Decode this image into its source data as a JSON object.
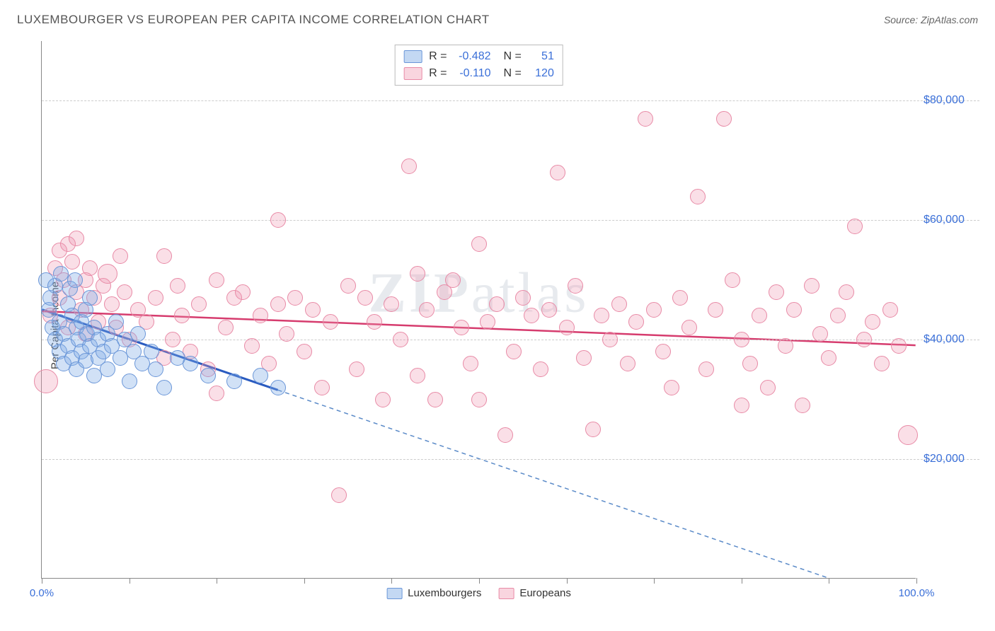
{
  "header": {
    "title": "LUXEMBOURGER VS EUROPEAN PER CAPITA INCOME CORRELATION CHART",
    "source": "Source: ZipAtlas.com"
  },
  "chart": {
    "type": "scatter",
    "ylabel": "Per Capita Income",
    "watermark": "ZIPatlas",
    "xlim": [
      0,
      100
    ],
    "ylim": [
      0,
      90000
    ],
    "xtick_step": 10,
    "xtick_labels": {
      "0": "0.0%",
      "100": "100.0%"
    },
    "yticks": [
      20000,
      40000,
      60000,
      80000
    ],
    "ytick_labels": [
      "$20,000",
      "$40,000",
      "$60,000",
      "$80,000"
    ],
    "grid_color": "#cccccc",
    "axis_color": "#888888",
    "background_color": "#ffffff",
    "dot_radius_default": 11,
    "colors": {
      "blue_fill": "rgba(122,168,228,0.35)",
      "blue_stroke": "#6a96d8",
      "pink_fill": "rgba(240,150,175,0.30)",
      "pink_stroke": "#e88aa6",
      "tick_text": "#3a6fd8",
      "trend_blue": "#2a5bc0",
      "trend_pink": "#d63c6e"
    },
    "legend_top": {
      "rows": [
        {
          "swatch": "blue",
          "r_label": "R =",
          "r_val": "-0.482",
          "n_label": "N =",
          "n_val": "51"
        },
        {
          "swatch": "pink",
          "r_label": "R =",
          "r_val": "-0.110",
          "n_label": "N =",
          "n_val": "120"
        }
      ]
    },
    "legend_bottom": [
      {
        "swatch": "blue",
        "label": "Luxembourgers"
      },
      {
        "swatch": "pink",
        "label": "Europeans"
      }
    ],
    "trend_lines": {
      "blue": {
        "x1": 0,
        "y1": 45000,
        "x2": 27,
        "y2": 31500,
        "color": "#2a5bc0",
        "width": 3,
        "dash": "none"
      },
      "blue_ext": {
        "x1": 27,
        "y1": 31500,
        "x2": 100,
        "y2": -5000,
        "color": "#5a8ac8",
        "width": 1.5,
        "dash": "6,5"
      },
      "pink": {
        "x1": 0,
        "y1": 44700,
        "x2": 100,
        "y2": 39000,
        "color": "#d63c6e",
        "width": 2.5,
        "dash": "none"
      }
    },
    "series": {
      "luxembourgers": {
        "color": "blue",
        "points": [
          {
            "x": 0.5,
            "y": 50000
          },
          {
            "x": 0.8,
            "y": 45000
          },
          {
            "x": 1.0,
            "y": 47000
          },
          {
            "x": 1.2,
            "y": 42000
          },
          {
            "x": 1.5,
            "y": 49000
          },
          {
            "x": 1.5,
            "y": 40000
          },
          {
            "x": 2.0,
            "y": 43000
          },
          {
            "x": 2.0,
            "y": 38000
          },
          {
            "x": 2.2,
            "y": 51000
          },
          {
            "x": 2.5,
            "y": 41000
          },
          {
            "x": 2.5,
            "y": 36000
          },
          {
            "x": 3.0,
            "y": 46000
          },
          {
            "x": 3.0,
            "y": 39000
          },
          {
            "x": 3.2,
            "y": 48500
          },
          {
            "x": 3.5,
            "y": 44000
          },
          {
            "x": 3.5,
            "y": 37000
          },
          {
            "x": 3.8,
            "y": 50000
          },
          {
            "x": 4.0,
            "y": 42000
          },
          {
            "x": 4.0,
            "y": 35000
          },
          {
            "x": 4.2,
            "y": 40000
          },
          {
            "x": 4.5,
            "y": 43000
          },
          {
            "x": 4.5,
            "y": 38000
          },
          {
            "x": 5.0,
            "y": 45000
          },
          {
            "x": 5.0,
            "y": 36500
          },
          {
            "x": 5.2,
            "y": 41000
          },
          {
            "x": 5.5,
            "y": 47000
          },
          {
            "x": 5.5,
            "y": 39000
          },
          {
            "x": 6.0,
            "y": 34000
          },
          {
            "x": 6.0,
            "y": 42000
          },
          {
            "x": 6.5,
            "y": 40000
          },
          {
            "x": 6.5,
            "y": 37000
          },
          {
            "x": 7.0,
            "y": 38000
          },
          {
            "x": 7.5,
            "y": 41000
          },
          {
            "x": 7.5,
            "y": 35000
          },
          {
            "x": 8.0,
            "y": 39000
          },
          {
            "x": 8.5,
            "y": 43000
          },
          {
            "x": 9.0,
            "y": 37000
          },
          {
            "x": 9.5,
            "y": 40000
          },
          {
            "x": 10.0,
            "y": 33000
          },
          {
            "x": 10.5,
            "y": 38000
          },
          {
            "x": 11.0,
            "y": 41000
          },
          {
            "x": 11.5,
            "y": 36000
          },
          {
            "x": 12.5,
            "y": 38000
          },
          {
            "x": 13.0,
            "y": 35000
          },
          {
            "x": 14.0,
            "y": 32000
          },
          {
            "x": 15.5,
            "y": 37000
          },
          {
            "x": 17.0,
            "y": 36000
          },
          {
            "x": 19.0,
            "y": 34000
          },
          {
            "x": 22.0,
            "y": 33000
          },
          {
            "x": 25.0,
            "y": 34000
          },
          {
            "x": 27.0,
            "y": 32000
          }
        ]
      },
      "europeans": {
        "color": "pink",
        "points": [
          {
            "x": 0.5,
            "y": 33000,
            "r": 17
          },
          {
            "x": 1.0,
            "y": 44000
          },
          {
            "x": 1.5,
            "y": 52000
          },
          {
            "x": 2.0,
            "y": 47000
          },
          {
            "x": 2.0,
            "y": 55000
          },
          {
            "x": 2.5,
            "y": 50000
          },
          {
            "x": 3.0,
            "y": 42000
          },
          {
            "x": 3.0,
            "y": 56000
          },
          {
            "x": 3.5,
            "y": 53000
          },
          {
            "x": 4.0,
            "y": 48000
          },
          {
            "x": 4.0,
            "y": 57000
          },
          {
            "x": 4.5,
            "y": 45000
          },
          {
            "x": 5.0,
            "y": 50000
          },
          {
            "x": 5.0,
            "y": 41000
          },
          {
            "x": 5.5,
            "y": 52000
          },
          {
            "x": 6.0,
            "y": 47000
          },
          {
            "x": 6.5,
            "y": 43000
          },
          {
            "x": 7.0,
            "y": 49000
          },
          {
            "x": 7.5,
            "y": 51000,
            "r": 14
          },
          {
            "x": 8.0,
            "y": 46000
          },
          {
            "x": 8.5,
            "y": 42000
          },
          {
            "x": 9.0,
            "y": 54000
          },
          {
            "x": 9.5,
            "y": 48000
          },
          {
            "x": 10.0,
            "y": 40000
          },
          {
            "x": 11.0,
            "y": 45000
          },
          {
            "x": 12.0,
            "y": 43000
          },
          {
            "x": 13.0,
            "y": 47000
          },
          {
            "x": 14.0,
            "y": 54000
          },
          {
            "x": 14.0,
            "y": 37000
          },
          {
            "x": 15.0,
            "y": 40000
          },
          {
            "x": 15.5,
            "y": 49000
          },
          {
            "x": 16.0,
            "y": 44000
          },
          {
            "x": 17.0,
            "y": 38000
          },
          {
            "x": 18.0,
            "y": 46000
          },
          {
            "x": 19.0,
            "y": 35000
          },
          {
            "x": 20.0,
            "y": 50000
          },
          {
            "x": 20.0,
            "y": 31000
          },
          {
            "x": 21.0,
            "y": 42000
          },
          {
            "x": 22.0,
            "y": 47000
          },
          {
            "x": 23.0,
            "y": 48000
          },
          {
            "x": 24.0,
            "y": 39000
          },
          {
            "x": 25.0,
            "y": 44000
          },
          {
            "x": 26.0,
            "y": 36000
          },
          {
            "x": 27.0,
            "y": 46000
          },
          {
            "x": 27.0,
            "y": 60000
          },
          {
            "x": 28.0,
            "y": 41000
          },
          {
            "x": 29.0,
            "y": 47000
          },
          {
            "x": 30.0,
            "y": 38000
          },
          {
            "x": 31.0,
            "y": 45000
          },
          {
            "x": 32.0,
            "y": 32000
          },
          {
            "x": 33.0,
            "y": 43000
          },
          {
            "x": 34.0,
            "y": 14000
          },
          {
            "x": 35.0,
            "y": 49000
          },
          {
            "x": 36.0,
            "y": 35000
          },
          {
            "x": 37.0,
            "y": 47000
          },
          {
            "x": 38.0,
            "y": 43000
          },
          {
            "x": 39.0,
            "y": 30000
          },
          {
            "x": 40.0,
            "y": 46000
          },
          {
            "x": 41.0,
            "y": 40000
          },
          {
            "x": 42.0,
            "y": 69000
          },
          {
            "x": 43.0,
            "y": 34000
          },
          {
            "x": 43.0,
            "y": 51000
          },
          {
            "x": 44.0,
            "y": 45000
          },
          {
            "x": 45.0,
            "y": 30000
          },
          {
            "x": 46.0,
            "y": 48000
          },
          {
            "x": 47.0,
            "y": 50000
          },
          {
            "x": 48.0,
            "y": 42000
          },
          {
            "x": 49.0,
            "y": 36000
          },
          {
            "x": 50.0,
            "y": 56000
          },
          {
            "x": 50.0,
            "y": 30000
          },
          {
            "x": 51.0,
            "y": 43000
          },
          {
            "x": 52.0,
            "y": 46000
          },
          {
            "x": 53.0,
            "y": 24000
          },
          {
            "x": 54.0,
            "y": 38000
          },
          {
            "x": 55.0,
            "y": 47000
          },
          {
            "x": 56.0,
            "y": 44000
          },
          {
            "x": 57.0,
            "y": 35000
          },
          {
            "x": 58.0,
            "y": 45000
          },
          {
            "x": 59.0,
            "y": 68000
          },
          {
            "x": 60.0,
            "y": 42000
          },
          {
            "x": 61.0,
            "y": 49000
          },
          {
            "x": 62.0,
            "y": 37000
          },
          {
            "x": 63.0,
            "y": 25000
          },
          {
            "x": 64.0,
            "y": 44000
          },
          {
            "x": 65.0,
            "y": 40000
          },
          {
            "x": 66.0,
            "y": 46000
          },
          {
            "x": 67.0,
            "y": 36000
          },
          {
            "x": 68.0,
            "y": 43000
          },
          {
            "x": 69.0,
            "y": 77000
          },
          {
            "x": 70.0,
            "y": 45000
          },
          {
            "x": 71.0,
            "y": 38000
          },
          {
            "x": 72.0,
            "y": 32000
          },
          {
            "x": 73.0,
            "y": 47000
          },
          {
            "x": 74.0,
            "y": 42000
          },
          {
            "x": 75.0,
            "y": 64000
          },
          {
            "x": 76.0,
            "y": 35000
          },
          {
            "x": 77.0,
            "y": 45000
          },
          {
            "x": 78.0,
            "y": 77000
          },
          {
            "x": 79.0,
            "y": 50000
          },
          {
            "x": 80.0,
            "y": 40000
          },
          {
            "x": 80.0,
            "y": 29000
          },
          {
            "x": 81.0,
            "y": 36000
          },
          {
            "x": 82.0,
            "y": 44000
          },
          {
            "x": 83.0,
            "y": 32000
          },
          {
            "x": 84.0,
            "y": 48000
          },
          {
            "x": 85.0,
            "y": 39000
          },
          {
            "x": 86.0,
            "y": 45000
          },
          {
            "x": 87.0,
            "y": 29000
          },
          {
            "x": 88.0,
            "y": 49000
          },
          {
            "x": 89.0,
            "y": 41000
          },
          {
            "x": 90.0,
            "y": 37000
          },
          {
            "x": 91.0,
            "y": 44000
          },
          {
            "x": 92.0,
            "y": 48000
          },
          {
            "x": 93.0,
            "y": 59000
          },
          {
            "x": 94.0,
            "y": 40000
          },
          {
            "x": 95.0,
            "y": 43000
          },
          {
            "x": 96.0,
            "y": 36000
          },
          {
            "x": 97.0,
            "y": 45000
          },
          {
            "x": 98.0,
            "y": 39000
          },
          {
            "x": 99.0,
            "y": 24000,
            "r": 14
          }
        ]
      }
    }
  }
}
